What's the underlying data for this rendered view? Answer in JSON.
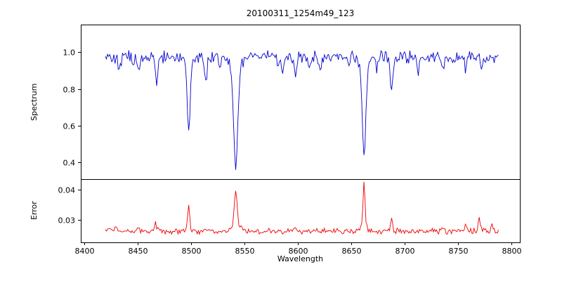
{
  "chart_data": {
    "type": "line",
    "title": "20100311_1254m49_123",
    "xlabel": "Wavelength",
    "xlim": [
      8397,
      8808
    ],
    "x_ticks": [
      8400,
      8450,
      8500,
      8550,
      8600,
      8650,
      8700,
      8750,
      8800
    ],
    "x_start": 8420,
    "x_end": 8788,
    "x_step": 1,
    "noise_seed": 42,
    "grid": false,
    "legend": false,
    "panels": [
      {
        "name": "spectrum",
        "ylabel": "Spectrum",
        "ylim": [
          0.31,
          1.15
        ],
        "y_ticks": [
          0.4,
          0.6,
          0.8,
          1.0
        ],
        "y_tick_labels": [
          "0.4",
          "0.6",
          "0.8",
          "1.0"
        ],
        "color": "#0000cd",
        "baseline": 0.975,
        "noise_amplitude": 0.04,
        "absorption_lines": [
          {
            "center": 8433,
            "depth": 0.08,
            "width": 1.5
          },
          {
            "center": 8446,
            "depth": 0.06,
            "width": 1.3
          },
          {
            "center": 8451,
            "depth": 0.07,
            "width": 1.3
          },
          {
            "center": 8468,
            "depth": 0.15,
            "width": 1.7
          },
          {
            "center": 8498.02,
            "depth": 0.35,
            "width": 1.9
          },
          {
            "center": 8498.02,
            "depth": 0.06,
            "width": 4.5
          },
          {
            "center": 8514,
            "depth": 0.15,
            "width": 1.5
          },
          {
            "center": 8527,
            "depth": 0.07,
            "width": 1.3
          },
          {
            "center": 8542.09,
            "depth": 0.5,
            "width": 2.6
          },
          {
            "center": 8542.09,
            "depth": 0.1,
            "width": 6.0
          },
          {
            "center": 8582,
            "depth": 0.07,
            "width": 1.4
          },
          {
            "center": 8586,
            "depth": 0.08,
            "width": 1.4
          },
          {
            "center": 8598,
            "depth": 0.11,
            "width": 1.5
          },
          {
            "center": 8611,
            "depth": 0.06,
            "width": 1.3
          },
          {
            "center": 8621,
            "depth": 0.09,
            "width": 1.4
          },
          {
            "center": 8648,
            "depth": 0.06,
            "width": 1.3
          },
          {
            "center": 8662.14,
            "depth": 0.48,
            "width": 2.2
          },
          {
            "center": 8662.14,
            "depth": 0.08,
            "width": 5.0
          },
          {
            "center": 8674,
            "depth": 0.07,
            "width": 1.3
          },
          {
            "center": 8688,
            "depth": 0.2,
            "width": 1.8
          },
          {
            "center": 8713,
            "depth": 0.07,
            "width": 1.4
          },
          {
            "center": 8736,
            "depth": 0.08,
            "width": 1.4
          },
          {
            "center": 8757,
            "depth": 0.06,
            "width": 1.3
          },
          {
            "center": 8772,
            "depth": 0.07,
            "width": 1.3
          }
        ]
      },
      {
        "name": "error",
        "ylabel": "Error",
        "ylim": [
          0.0225,
          0.0435
        ],
        "y_ticks": [
          0.03,
          0.04
        ],
        "y_tick_labels": [
          "0.03",
          "0.04"
        ],
        "color": "#ee0000",
        "baseline": 0.0262,
        "noise_amplitude": 0.0011,
        "emission_bumps": [
          {
            "center": 8424,
            "amp": 0.0015,
            "width": 2.0
          },
          {
            "center": 8430,
            "amp": 0.002,
            "width": 1.5
          },
          {
            "center": 8451,
            "amp": 0.001,
            "width": 1.3
          },
          {
            "center": 8467,
            "amp": 0.0025,
            "width": 1.5
          },
          {
            "center": 8498.02,
            "amp": 0.0085,
            "width": 1.3
          },
          {
            "center": 8514,
            "amp": 0.0015,
            "width": 1.3
          },
          {
            "center": 8542.09,
            "amp": 0.0115,
            "width": 1.8
          },
          {
            "center": 8542.09,
            "amp": 0.002,
            "width": 5.0
          },
          {
            "center": 8598,
            "amp": 0.001,
            "width": 1.3
          },
          {
            "center": 8662.14,
            "amp": 0.015,
            "width": 1.3
          },
          {
            "center": 8662.14,
            "amp": 0.0015,
            "width": 4.0
          },
          {
            "center": 8688,
            "amp": 0.0035,
            "width": 1.3
          },
          {
            "center": 8736,
            "amp": 0.0015,
            "width": 1.3
          },
          {
            "center": 8757,
            "amp": 0.002,
            "width": 1.3
          },
          {
            "center": 8770,
            "amp": 0.0045,
            "width": 1.5
          },
          {
            "center": 8782,
            "amp": 0.002,
            "width": 1.3
          }
        ]
      }
    ]
  }
}
